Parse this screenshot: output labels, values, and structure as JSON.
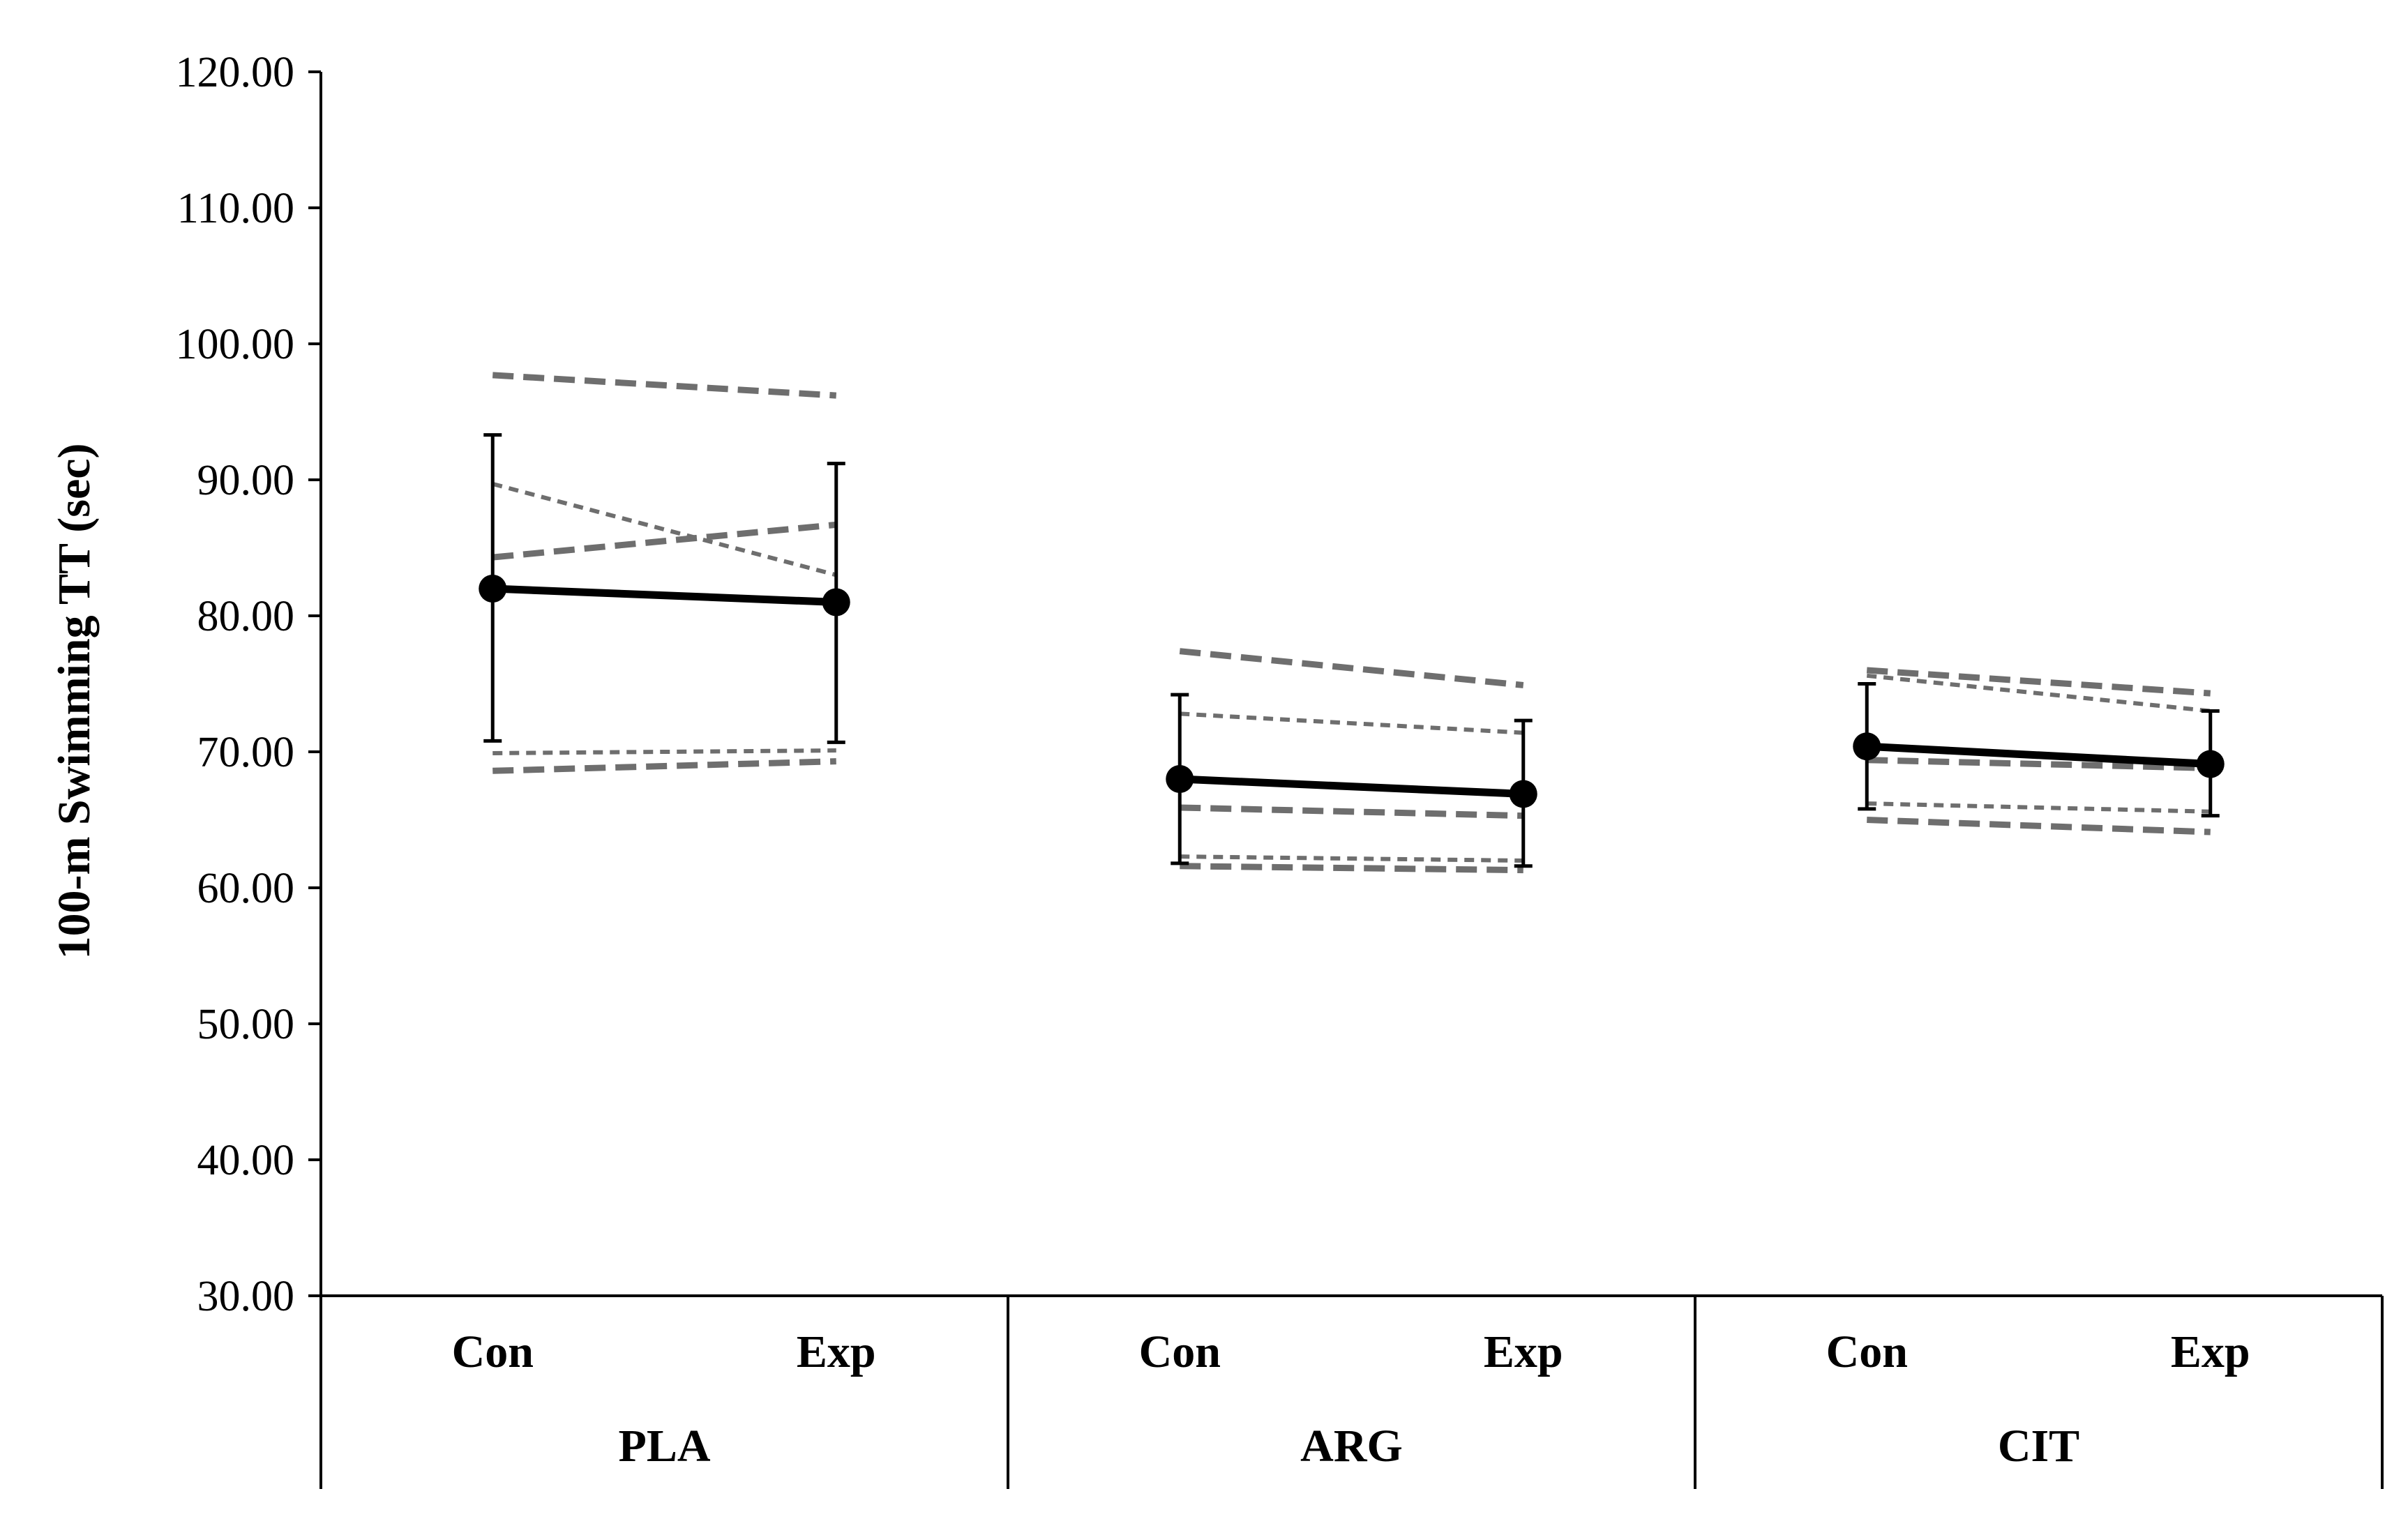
{
  "chart_data": {
    "type": "line",
    "title": "",
    "ylabel": "100-m Swimming TT (sec)",
    "xlabel": "",
    "ylim": [
      30,
      120
    ],
    "ytick_step": 10,
    "y_decimals": 2,
    "grid": false,
    "legend": "none",
    "colors": {
      "mean": "#000000",
      "individual": "#6e6e6e",
      "axis": "#000000"
    },
    "groups": [
      {
        "label": "PLA",
        "conditions": [
          "Con",
          "Exp"
        ],
        "mean": [
          82.0,
          81.0
        ],
        "sd_error": [
          [
            70.8,
            93.3
          ],
          [
            70.7,
            91.2
          ]
        ],
        "individuals": [
          [
            97.7,
            96.2
          ],
          [
            89.7,
            83.0
          ],
          [
            84.3,
            86.7
          ],
          [
            69.9,
            70.1
          ],
          [
            68.6,
            69.3
          ]
        ]
      },
      {
        "label": "ARG",
        "conditions": [
          "Con",
          "Exp"
        ],
        "mean": [
          68.0,
          66.9
        ],
        "sd_error": [
          [
            61.8,
            74.2
          ],
          [
            61.6,
            72.3
          ]
        ],
        "individuals": [
          [
            77.4,
            74.9
          ],
          [
            72.8,
            71.4
          ],
          [
            65.9,
            65.3
          ],
          [
            62.3,
            62.0
          ],
          [
            61.6,
            61.3
          ]
        ]
      },
      {
        "label": "CIT",
        "conditions": [
          "Con",
          "Exp"
        ],
        "mean": [
          70.4,
          69.1
        ],
        "sd_error": [
          [
            65.8,
            75.0
          ],
          [
            65.3,
            73.0
          ]
        ],
        "individuals": [
          [
            76.0,
            74.3
          ],
          [
            75.6,
            73.0
          ],
          [
            69.4,
            68.8
          ],
          [
            66.2,
            65.6
          ],
          [
            65.0,
            64.1
          ]
        ]
      }
    ]
  }
}
